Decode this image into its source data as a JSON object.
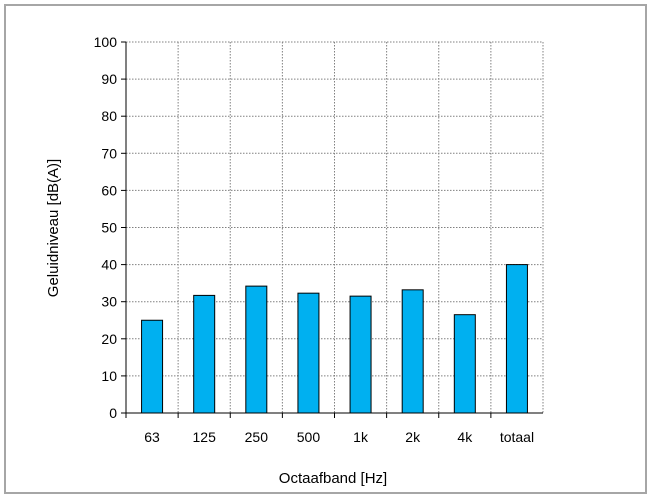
{
  "chart_data": {
    "type": "bar",
    "categories": [
      "63",
      "125",
      "250",
      "500",
      "1k",
      "2k",
      "4k",
      "totaal"
    ],
    "values": [
      25,
      31.7,
      34.2,
      32.3,
      31.5,
      33.2,
      26.5,
      40
    ],
    "xlabel": "Octaafband  [Hz]",
    "ylabel": "Geluidniveau  [dB(A)]",
    "ylim": [
      0,
      100
    ],
    "yticks": [
      "0",
      "10",
      "20",
      "30",
      "40",
      "50",
      "60",
      "70",
      "80",
      "90",
      "100"
    ],
    "grid": true,
    "colors": {
      "bar_fill": "#00b0f0",
      "bar_stroke": "#000000",
      "grid": "#808080",
      "frame": "#a6a6a6"
    }
  }
}
